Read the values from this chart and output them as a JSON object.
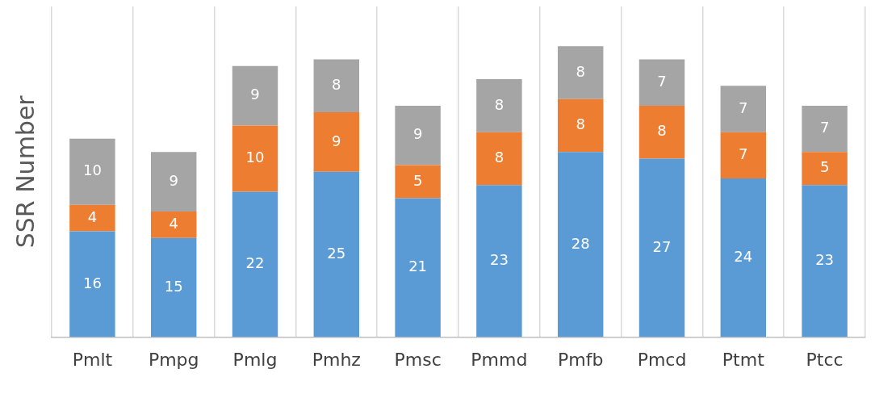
{
  "chart_data": {
    "type": "bar",
    "ylabel": "SSR Number",
    "categories": [
      "Pmlt",
      "Pmpg",
      "Pmlg",
      "Pmhz",
      "Pmsc",
      "Pmmd",
      "Pmfb",
      "Pmcd",
      "Ptmt",
      "Ptcc"
    ],
    "series": [
      {
        "color": "#5b9bd5",
        "values": [
          16,
          15,
          22,
          25,
          21,
          23,
          28,
          27,
          24,
          23
        ]
      },
      {
        "color": "#ed7d31",
        "values": [
          4,
          4,
          10,
          9,
          5,
          8,
          8,
          8,
          7,
          5
        ]
      },
      {
        "color": "#a5a5a5",
        "values": [
          10,
          9,
          9,
          8,
          9,
          8,
          8,
          7,
          7,
          7
        ]
      }
    ],
    "stacked": true,
    "data_labels": true,
    "grid": "x",
    "legend": false,
    "tick_labels": "x",
    "ylim": [
      0,
      50
    ]
  }
}
